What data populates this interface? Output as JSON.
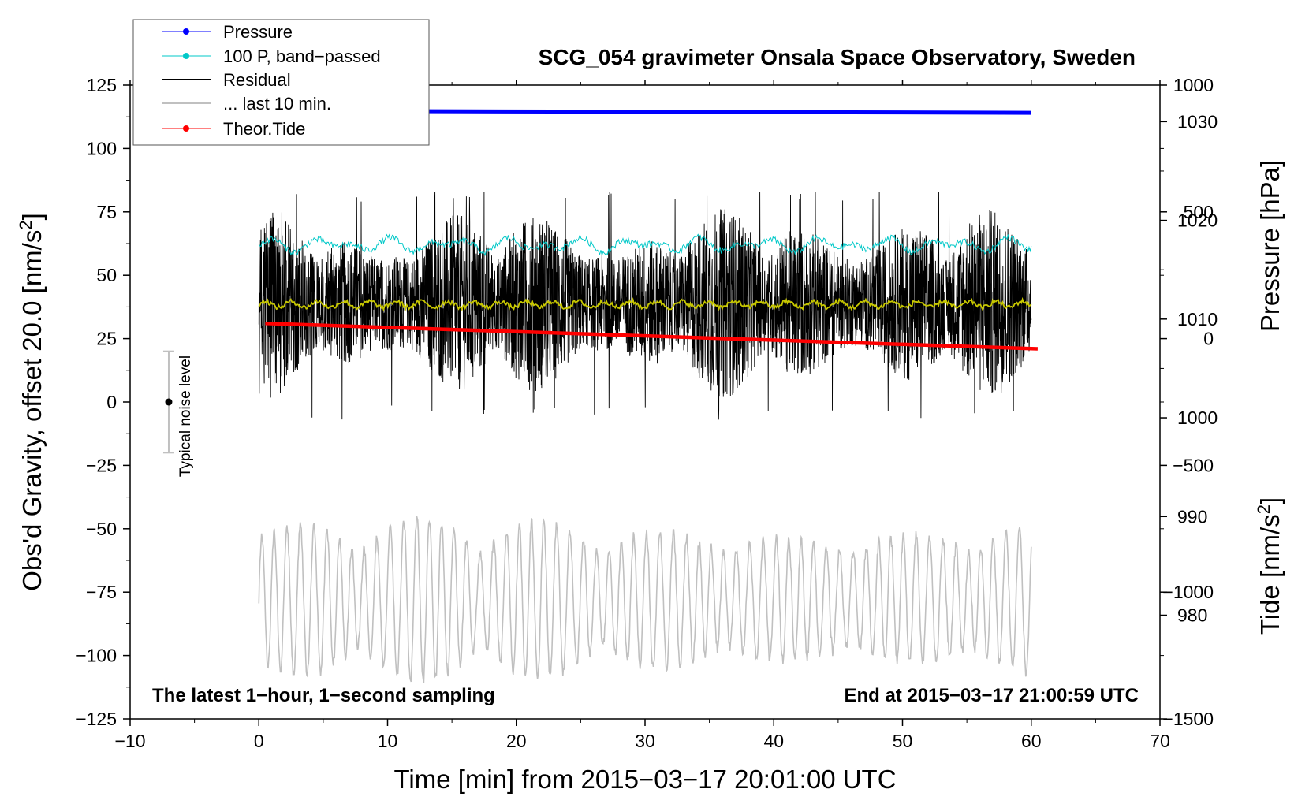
{
  "chart_data": {
    "type": "line",
    "title": "SCG_054 gravimeter Onsala Space Observatory, Sweden",
    "xlabel": "Time [min] from 2015−03−17 20:01:00 UTC",
    "ylabel_main": "Obs'd Gravity, offset 20.0 [nm/s",
    "ylabel_main_sup": "2",
    "ylabel_main_close": "]",
    "ylabel_pressure": "Pressure [hPa]",
    "ylabel_tide": "Tide [nm/s",
    "ylabel_tide_sup": "2",
    "ylabel_tide_close": "]",
    "xlim": [
      -10,
      70
    ],
    "ylim": [
      -125,
      125
    ],
    "xticks": [
      -10,
      0,
      10,
      20,
      30,
      40,
      50,
      60,
      70
    ],
    "xtick_labels": [
      "−10",
      "0",
      "10",
      "20",
      "30",
      "40",
      "50",
      "60",
      "70"
    ],
    "yticks": [
      125,
      100,
      75,
      50,
      25,
      0,
      -25,
      -50,
      -75,
      -100,
      -125
    ],
    "ytick_labels": [
      "125",
      "100",
      "75",
      "50",
      "25",
      "0",
      "−25",
      "−50",
      "−75",
      "−100",
      "−125"
    ],
    "pressure_axis": {
      "ticks": [
        1030,
        1020,
        1010,
        1000,
        990,
        980
      ],
      "tick_labels": [
        "1030",
        "1020",
        "1010",
        "1000",
        "990",
        "980"
      ],
      "range_hpa": [
        969.5,
        1033.7
      ]
    },
    "tide_axis": {
      "ticks": [
        1000,
        500,
        0,
        -500,
        -1000,
        -1500
      ],
      "tick_labels": [
        "1000",
        "500",
        "0",
        "−500",
        "−1000",
        "−1500"
      ],
      "range": [
        -1500,
        1000
      ]
    },
    "legend": {
      "placement": "top-left",
      "items": [
        {
          "label": "Pressure",
          "color": "#0000ff",
          "marker": true
        },
        {
          "label": "100 P, band−passed",
          "color": "#00c8c8",
          "marker": true
        },
        {
          "label": "Residual",
          "color": "#000000",
          "marker": false
        },
        {
          "label": "... last 10 min.",
          "color": "#c0c0c0",
          "marker": false
        },
        {
          "label": "Theor.Tide",
          "color": "#ff0000",
          "marker": true
        }
      ]
    },
    "annotations": {
      "left": "The latest 1−hour, 1−second sampling",
      "right": "End at 2015−03−17 21:00:59 UTC",
      "noise_label": "Typical noise level",
      "noise_center": 0,
      "noise_halfwidth": 20,
      "noise_x": -7
    },
    "series": [
      {
        "name": "Pressure",
        "axis": "pressure_hPa",
        "color": "#0000ff",
        "x_range": [
          0,
          60
        ],
        "start": 1031.1,
        "end": 1030.9
      },
      {
        "name": "100 P, band-passed",
        "axis": "gravity",
        "color": "#00c8c8",
        "x_range": [
          0,
          60
        ],
        "mean": 62,
        "amplitude": 3
      },
      {
        "name": "Residual",
        "axis": "gravity",
        "color": "#000000",
        "x_range": [
          0,
          60
        ],
        "mean": 39,
        "typical_range": [
          0,
          80
        ],
        "extremes": [
          -7,
          83
        ]
      },
      {
        "name": "Residual smoothed",
        "axis": "gravity",
        "color": "#c8c800",
        "x_range": [
          0,
          60
        ],
        "mean": 38.5
      },
      {
        "name": "... last 10 min.",
        "axis": "gravity",
        "color": "#c0c0c0",
        "x_range": [
          0,
          60
        ],
        "mean": -78,
        "range": [
          -115,
          -38
        ]
      },
      {
        "name": "Theor.Tide",
        "axis": "tide",
        "color": "#ff0000",
        "x_range": [
          0.5,
          60.5
        ],
        "start": 60,
        "end": -40
      }
    ]
  }
}
